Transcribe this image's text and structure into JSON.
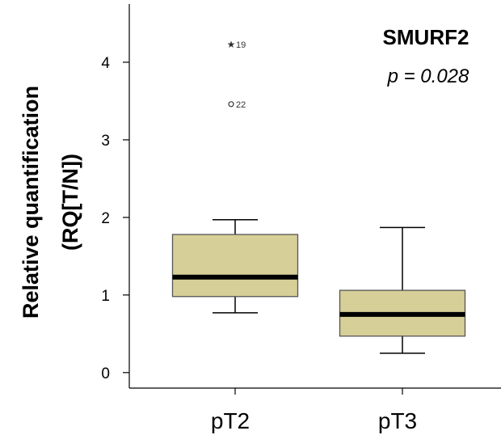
{
  "chart_data": {
    "type": "box",
    "title": "SMURF2",
    "annotation": "p = 0.028",
    "ylabel": "Relative quantification (RQ[T/N])",
    "ylabel_lines": [
      "Relative quantification",
      "(RQ[T/N])"
    ],
    "xlabel": "",
    "ylim": [
      -0.2,
      4.75
    ],
    "yticks": [
      0,
      1,
      2,
      3,
      4
    ],
    "categories": [
      "pT2",
      "pT3"
    ],
    "series": [
      {
        "category": "pT2",
        "whisker_low": 0.77,
        "q1": 0.98,
        "median": 1.23,
        "q3": 1.78,
        "whisker_high": 1.97,
        "outliers": [
          {
            "value": 4.23,
            "label": "19",
            "marker": "star"
          },
          {
            "value": 3.46,
            "label": "22",
            "marker": "circle"
          }
        ]
      },
      {
        "category": "pT3",
        "whisker_low": 0.25,
        "q1": 0.47,
        "median": 0.75,
        "q3": 1.06,
        "whisker_high": 1.87,
        "outliers": []
      }
    ],
    "colors": {
      "box_fill": "#d6cf98",
      "box_stroke": "#555555",
      "median": "#000000"
    },
    "grid": false
  }
}
